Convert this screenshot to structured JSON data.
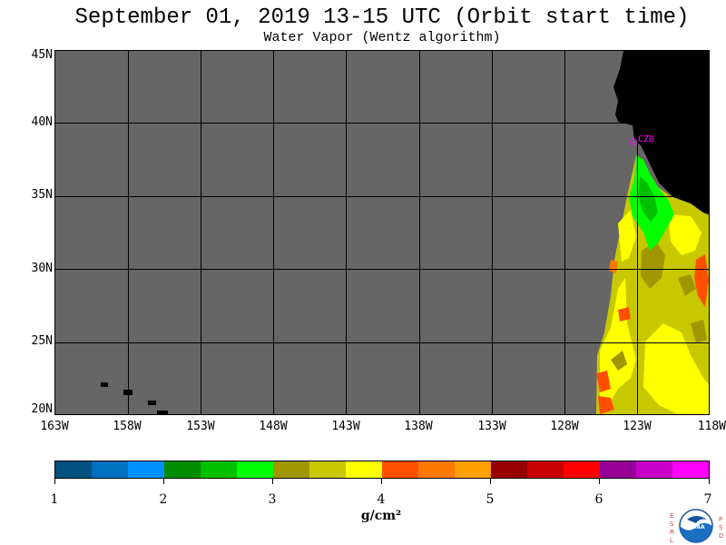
{
  "header": {
    "title": "September 01, 2019  13-15 UTC  (Orbit start time)",
    "subtitle": "Water Vapor (Wentz algorithm)"
  },
  "map": {
    "lat_labels": [
      "45N",
      "40N",
      "35N",
      "30N",
      "25N",
      "20N"
    ],
    "lon_labels": [
      "163W",
      "158W",
      "153W",
      "148W",
      "143W",
      "138W",
      "133W",
      "128W",
      "123W",
      "118W"
    ],
    "station_label": "CZD",
    "colors": {
      "no_data": "#666666",
      "land": "#000000",
      "grid": "#000000",
      "station": "#ff00ff"
    }
  },
  "colorbar": {
    "labels": [
      "1",
      "2",
      "3",
      "4",
      "5",
      "6",
      "7"
    ],
    "units": "g/cm²",
    "colors": [
      "#005080",
      "#0070c0",
      "#0090ff",
      "#008c00",
      "#00c000",
      "#00ff00",
      "#a09600",
      "#c8c800",
      "#ffff00",
      "#ff5000",
      "#ff7800",
      "#ffa000",
      "#960000",
      "#c80000",
      "#ff0000",
      "#960096",
      "#c800c8",
      "#ff00ff"
    ]
  },
  "logo": {
    "left_letters": "ESRL",
    "right_letters": "PSD",
    "center": "NOAA"
  }
}
